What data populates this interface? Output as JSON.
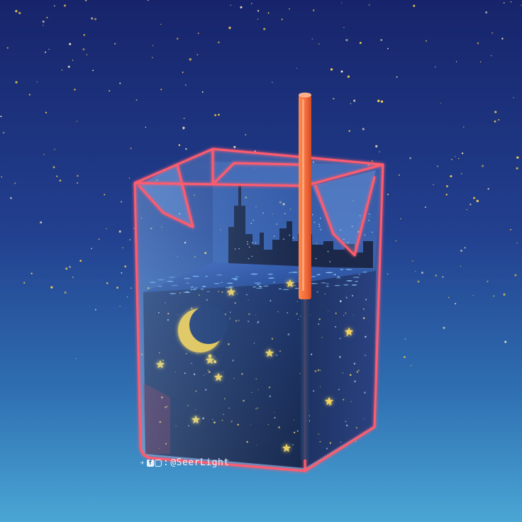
{
  "scene": {
    "description_tag": "carton",
    "colors": {
      "sky_top": "#17246b",
      "sky_mid": "#2a4f9c",
      "sky_bottom": "#4aa6d4",
      "carton_outline": "#ff5b6e",
      "straw": "#f26a3a",
      "liquid_dark": "#0a1638",
      "moon": "#ffcb2e",
      "stars": "#ffd54a",
      "city": "#0b1230"
    }
  },
  "watermark": {
    "handle": "@SeerLight",
    "icons": [
      "twitter-icon",
      "facebook-icon",
      "instagram-icon"
    ]
  }
}
